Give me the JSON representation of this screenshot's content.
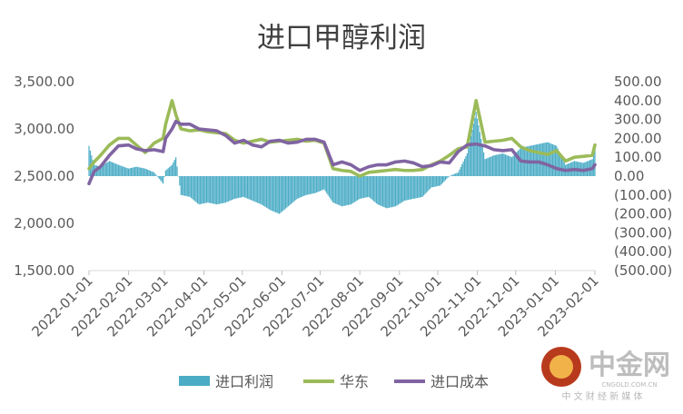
{
  "chart_data": {
    "type": "bar",
    "title": "进口甲醇利润",
    "left_axis": {
      "ylim": [
        1500,
        3500
      ],
      "ticks": [
        1500,
        2000,
        2500,
        3000,
        3500
      ],
      "tick_labels": [
        "1,500.00",
        "2,000.00",
        "2,500.00",
        "3,000.00",
        "3,500.00"
      ]
    },
    "right_axis": {
      "ylim": [
        -500,
        500
      ],
      "ticks": [
        500,
        400,
        300,
        200,
        100,
        0,
        -100,
        -200,
        -300,
        -400,
        -500
      ],
      "tick_labels": [
        "500.00",
        "400.00",
        "300.00",
        "200.00",
        "100.00",
        "0.00",
        "(100.00)",
        "(200.00)",
        "(300.00)",
        "(400.00)",
        "(500.00)"
      ]
    },
    "x_axis": {
      "start": "2022-01-01",
      "end": "2023-02-01",
      "tick_labels": [
        "2022-01-01",
        "2022-02-01",
        "2022-03-01",
        "2022-04-01",
        "2022-05-01",
        "2022-06-01",
        "2022-07-01",
        "2022-08-01",
        "2022-09-01",
        "2022-10-01",
        "2022-11-01",
        "2022-12-01",
        "2023-01-01",
        "2023-02-01"
      ]
    },
    "grid": false,
    "legend_position": "bottom",
    "series": [
      {
        "name": "进口利润",
        "type": "bar",
        "axis": "right",
        "color": "#4bacc6",
        "x": [
          "2022-01-01",
          "2022-01-05",
          "2022-01-10",
          "2022-01-17",
          "2022-01-24",
          "2022-02-01",
          "2022-02-07",
          "2022-02-14",
          "2022-02-21",
          "2022-02-28",
          "2022-03-02",
          "2022-03-07",
          "2022-03-10",
          "2022-03-14",
          "2022-03-21",
          "2022-03-28",
          "2022-04-04",
          "2022-04-11",
          "2022-04-18",
          "2022-04-25",
          "2022-05-02",
          "2022-05-09",
          "2022-05-16",
          "2022-05-23",
          "2022-05-30",
          "2022-06-06",
          "2022-06-13",
          "2022-06-20",
          "2022-06-27",
          "2022-07-04",
          "2022-07-11",
          "2022-07-18",
          "2022-07-25",
          "2022-08-01",
          "2022-08-08",
          "2022-08-15",
          "2022-08-22",
          "2022-08-29",
          "2022-09-05",
          "2022-09-12",
          "2022-09-19",
          "2022-09-26",
          "2022-10-03",
          "2022-10-10",
          "2022-10-17",
          "2022-10-24",
          "2022-10-31",
          "2022-11-07",
          "2022-11-14",
          "2022-11-21",
          "2022-11-28",
          "2022-12-05",
          "2022-12-12",
          "2022-12-19",
          "2022-12-26",
          "2023-01-02",
          "2023-01-09",
          "2023-01-16",
          "2023-01-23",
          "2023-01-30",
          "2023-02-01"
        ],
        "values": [
          160,
          60,
          50,
          80,
          60,
          40,
          50,
          40,
          20,
          -40,
          30,
          60,
          100,
          -100,
          -110,
          -150,
          -140,
          -150,
          -140,
          -120,
          -110,
          -130,
          -150,
          -180,
          -200,
          -160,
          -120,
          -100,
          -90,
          -70,
          -140,
          -160,
          -150,
          -120,
          -110,
          -150,
          -170,
          -160,
          -130,
          -120,
          -110,
          -60,
          -50,
          0,
          20,
          120,
          340,
          90,
          110,
          120,
          100,
          150,
          160,
          170,
          180,
          160,
          60,
          80,
          70,
          90,
          150
        ]
      },
      {
        "name": "华东",
        "type": "line",
        "axis": "left",
        "color": "#9bbb59",
        "x": [
          "2022-01-01",
          "2022-01-05",
          "2022-01-10",
          "2022-01-17",
          "2022-01-24",
          "2022-02-01",
          "2022-02-07",
          "2022-02-14",
          "2022-02-21",
          "2022-02-28",
          "2022-03-02",
          "2022-03-07",
          "2022-03-10",
          "2022-03-14",
          "2022-03-21",
          "2022-03-28",
          "2022-04-04",
          "2022-04-11",
          "2022-04-18",
          "2022-04-25",
          "2022-05-02",
          "2022-05-09",
          "2022-05-16",
          "2022-05-23",
          "2022-05-30",
          "2022-06-06",
          "2022-06-13",
          "2022-06-20",
          "2022-06-27",
          "2022-07-04",
          "2022-07-11",
          "2022-07-18",
          "2022-07-25",
          "2022-08-01",
          "2022-08-08",
          "2022-08-15",
          "2022-08-22",
          "2022-08-29",
          "2022-09-05",
          "2022-09-12",
          "2022-09-19",
          "2022-09-26",
          "2022-10-03",
          "2022-10-10",
          "2022-10-17",
          "2022-10-24",
          "2022-10-31",
          "2022-11-07",
          "2022-11-14",
          "2022-11-21",
          "2022-11-28",
          "2022-12-05",
          "2022-12-12",
          "2022-12-19",
          "2022-12-26",
          "2023-01-02",
          "2023-01-09",
          "2023-01-16",
          "2023-01-23",
          "2023-01-30",
          "2023-02-01"
        ],
        "values": [
          2580,
          2650,
          2720,
          2830,
          2900,
          2900,
          2830,
          2750,
          2850,
          2900,
          3050,
          3300,
          3150,
          3000,
          2980,
          2990,
          2970,
          2960,
          2950,
          2880,
          2850,
          2870,
          2890,
          2860,
          2870,
          2880,
          2890,
          2870,
          2880,
          2850,
          2580,
          2560,
          2550,
          2500,
          2540,
          2550,
          2560,
          2570,
          2560,
          2560,
          2570,
          2620,
          2660,
          2720,
          2790,
          2810,
          3300,
          2860,
          2870,
          2880,
          2900,
          2810,
          2770,
          2750,
          2730,
          2770,
          2660,
          2700,
          2710,
          2720,
          2830
        ]
      },
      {
        "name": "进口成本",
        "type": "line",
        "axis": "left",
        "color": "#8064a2",
        "x": [
          "2022-01-01",
          "2022-01-05",
          "2022-01-10",
          "2022-01-17",
          "2022-01-24",
          "2022-02-01",
          "2022-02-07",
          "2022-02-14",
          "2022-02-21",
          "2022-02-28",
          "2022-03-02",
          "2022-03-07",
          "2022-03-10",
          "2022-03-14",
          "2022-03-21",
          "2022-03-28",
          "2022-04-04",
          "2022-04-11",
          "2022-04-18",
          "2022-04-25",
          "2022-05-02",
          "2022-05-09",
          "2022-05-16",
          "2022-05-23",
          "2022-05-30",
          "2022-06-06",
          "2022-06-13",
          "2022-06-20",
          "2022-06-27",
          "2022-07-04",
          "2022-07-11",
          "2022-07-18",
          "2022-07-25",
          "2022-08-01",
          "2022-08-08",
          "2022-08-15",
          "2022-08-22",
          "2022-08-29",
          "2022-09-05",
          "2022-09-12",
          "2022-09-19",
          "2022-09-26",
          "2022-10-03",
          "2022-10-10",
          "2022-10-17",
          "2022-10-24",
          "2022-10-31",
          "2022-11-07",
          "2022-11-14",
          "2022-11-21",
          "2022-11-28",
          "2022-12-05",
          "2022-12-12",
          "2022-12-19",
          "2022-12-26",
          "2023-01-02",
          "2023-01-09",
          "2023-01-16",
          "2023-01-23",
          "2023-01-30",
          "2023-02-01"
        ],
        "values": [
          2420,
          2550,
          2600,
          2720,
          2820,
          2830,
          2790,
          2770,
          2780,
          2760,
          2900,
          3000,
          3080,
          3050,
          3050,
          3000,
          2990,
          2980,
          2930,
          2850,
          2880,
          2830,
          2810,
          2870,
          2880,
          2850,
          2860,
          2890,
          2890,
          2860,
          2620,
          2650,
          2620,
          2560,
          2600,
          2620,
          2620,
          2650,
          2660,
          2640,
          2600,
          2610,
          2650,
          2640,
          2760,
          2830,
          2840,
          2820,
          2780,
          2770,
          2780,
          2660,
          2650,
          2650,
          2620,
          2580,
          2560,
          2570,
          2560,
          2580,
          2620
        ]
      }
    ]
  },
  "watermark": {
    "brand": "中金网",
    "url": "CNGOLD.COM.CN",
    "tagline": "中 文 财 经 新 媒 体"
  }
}
